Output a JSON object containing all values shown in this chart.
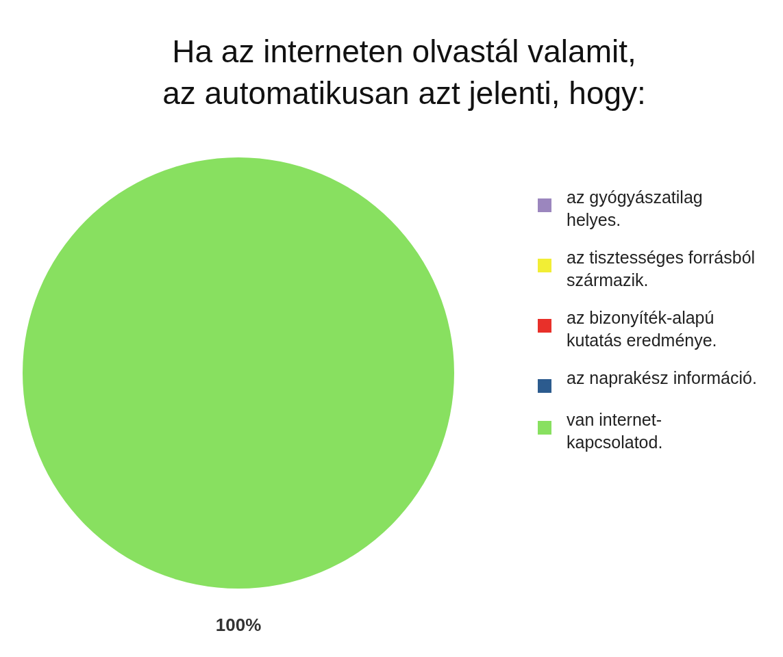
{
  "chart_data": {
    "type": "pie",
    "title": "Ha az interneten olvastál valamit,\naz automatikusan azt jelenti, hogy:",
    "categories": [
      "az gyógyászatilag helyes.",
      "az tisztességes forrásból származik.",
      "az bizonyíték-alapú kutatás eredménye.",
      "az naprakész információ.",
      "van internet-kapcsolatod."
    ],
    "values": [
      0,
      0,
      0,
      0,
      100
    ],
    "colors": [
      "#9b86be",
      "#f2ee35",
      "#e8302a",
      "#2c5b8e",
      "#88e060"
    ],
    "value_labels": [
      null,
      null,
      null,
      null,
      "100%"
    ],
    "legend": "right"
  }
}
